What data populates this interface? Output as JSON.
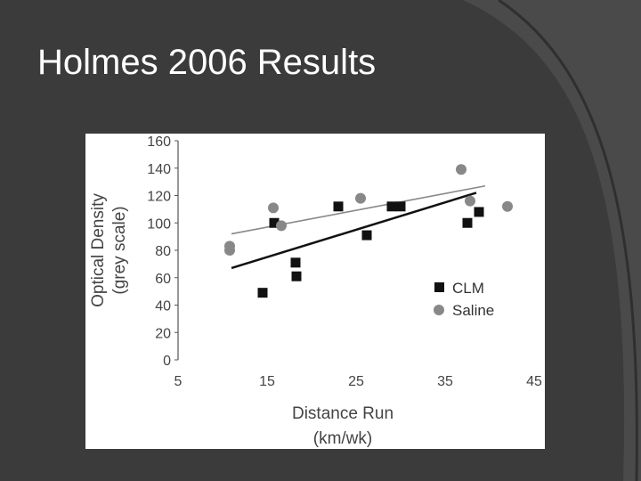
{
  "slide": {
    "title": "Holmes 2006 Results",
    "colors": {
      "background": "#3b3b3b",
      "title": "#ffffff",
      "accent": "#4a4a4a"
    }
  },
  "chart_data": {
    "type": "scatter",
    "title": "",
    "xlabel": [
      "Distance Run",
      "(km/wk)"
    ],
    "ylabel": [
      "Optical Density",
      "(grey scale)"
    ],
    "xlim": [
      5,
      45
    ],
    "ylim": [
      0,
      160
    ],
    "xticks": [
      5,
      15,
      25,
      35,
      45
    ],
    "yticks": [
      0,
      20,
      40,
      60,
      80,
      100,
      120,
      140,
      160
    ],
    "grid": false,
    "legend_position": "bottom-right",
    "series": [
      {
        "name": "CLM",
        "marker": "square",
        "color": "#111111",
        "points": [
          {
            "x": 14.5,
            "y": 49
          },
          {
            "x": 15.8,
            "y": 100
          },
          {
            "x": 18.2,
            "y": 71
          },
          {
            "x": 18.3,
            "y": 61
          },
          {
            "x": 23,
            "y": 112
          },
          {
            "x": 26.2,
            "y": 91
          },
          {
            "x": 29,
            "y": 112
          },
          {
            "x": 30,
            "y": 112
          },
          {
            "x": 37.5,
            "y": 100
          },
          {
            "x": 38.8,
            "y": 108
          }
        ],
        "trend": {
          "x": [
            11,
            38.5
          ],
          "y": [
            67,
            122
          ]
        }
      },
      {
        "name": "Saline",
        "marker": "circle",
        "color": "#888888",
        "points": [
          {
            "x": 10.8,
            "y": 83
          },
          {
            "x": 10.8,
            "y": 80
          },
          {
            "x": 15.7,
            "y": 111
          },
          {
            "x": 16.6,
            "y": 98
          },
          {
            "x": 25.5,
            "y": 118
          },
          {
            "x": 36.8,
            "y": 139
          },
          {
            "x": 37.8,
            "y": 116
          },
          {
            "x": 42,
            "y": 112
          }
        ],
        "trend": {
          "x": [
            11,
            39.5
          ],
          "y": [
            92,
            127
          ]
        }
      }
    ]
  }
}
